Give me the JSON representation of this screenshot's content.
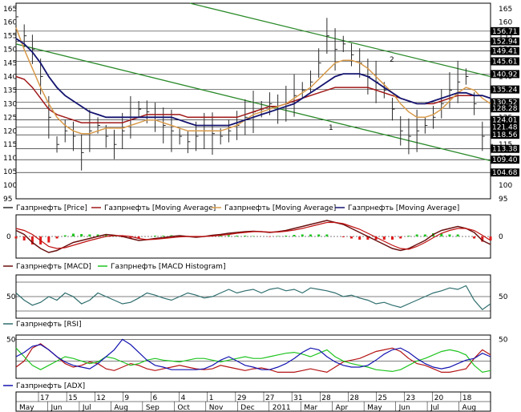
{
  "colors": {
    "price": "#2b2b2b",
    "ma_red": "#a01818",
    "ma_orange": "#d89a4a",
    "ma_navy": "#141470",
    "channel": "#2a8a2a",
    "macd": "#6a1010",
    "signal": "#c01010",
    "hist_pos": "#1fc41f",
    "hist_neg": "#e01b1b",
    "rsi": "#2f6e6e",
    "adx": "#1414b0",
    "di_plus": "#1fc41f",
    "di_minus": "#b41414",
    "grid": "#000000"
  },
  "chart_data": [
    {
      "type": "line",
      "panel": "price",
      "ylim": [
        95,
        167
      ],
      "yticks": [
        95,
        100,
        105,
        110,
        115,
        120,
        125,
        130,
        135,
        140,
        145,
        150,
        155,
        160,
        165
      ],
      "price_boxes": [
        "156.71",
        "152.94",
        "149.41",
        "145.61",
        "140.92",
        "135.24",
        "130.52",
        "128.28",
        "124.01",
        "121.48",
        "118.56",
        "113.38",
        "109.40",
        "104.68"
      ],
      "channel_labels": [
        "2",
        "1"
      ],
      "series": [
        {
          "name": "Газпрнефть [Price]",
          "color_key": "price"
        },
        {
          "name": "Газпрнефть [Moving Average]",
          "color_key": "ma_red"
        },
        {
          "name": "Газпрнефть [Moving Average]",
          "color_key": "ma_orange"
        },
        {
          "name": "Газпрнефть [Moving Average]",
          "color_key": "ma_navy"
        }
      ],
      "approx_close": [
        162,
        155,
        150,
        140,
        125,
        115,
        120,
        118,
        112,
        120,
        122,
        118,
        115,
        120,
        125,
        128,
        127,
        125,
        122,
        120,
        118,
        116,
        118,
        120,
        119,
        118,
        120,
        122,
        125,
        127,
        128,
        130,
        128,
        130,
        133,
        135,
        138,
        145,
        155,
        150,
        152,
        148,
        145,
        140,
        138,
        135,
        128,
        120,
        118,
        120,
        122,
        125,
        130,
        135,
        138,
        140,
        130,
        118,
        115
      ],
      "ma_red": [
        140,
        139,
        136,
        132,
        128,
        126,
        125,
        124,
        123,
        123,
        123,
        123,
        123,
        123,
        124,
        125,
        126,
        126,
        126,
        126,
        126,
        125,
        125,
        125,
        125,
        125,
        125,
        125,
        126,
        127,
        128,
        129,
        129,
        130,
        131,
        132,
        133,
        134,
        135,
        136,
        136,
        136,
        136,
        136,
        135,
        134,
        133,
        132,
        131,
        130,
        130,
        130,
        131,
        132,
        133,
        133,
        133,
        133,
        132
      ],
      "ma_orange": [
        158,
        150,
        143,
        136,
        130,
        125,
        122,
        120,
        119,
        119,
        120,
        121,
        121,
        121,
        122,
        123,
        124,
        124,
        123,
        122,
        121,
        120,
        120,
        120,
        120,
        120,
        121,
        122,
        124,
        126,
        127,
        128,
        129,
        130,
        132,
        134,
        136,
        139,
        142,
        145,
        146,
        146,
        145,
        143,
        140,
        137,
        134,
        130,
        127,
        125,
        125,
        126,
        128,
        131,
        134,
        136,
        135,
        132,
        130
      ],
      "ma_navy": [
        154,
        152,
        149,
        145,
        140,
        136,
        133,
        131,
        129,
        127,
        126,
        125,
        125,
        125,
        125,
        125,
        125,
        125,
        125,
        125,
        124,
        123,
        122,
        122,
        122,
        122,
        122,
        123,
        124,
        125,
        126,
        127,
        128,
        129,
        130,
        132,
        134,
        136,
        138,
        140,
        141,
        141,
        141,
        140,
        138,
        136,
        134,
        132,
        131,
        130,
        130,
        131,
        132,
        133,
        134,
        134,
        133,
        133,
        132
      ]
    },
    {
      "type": "bar",
      "panel": "macd",
      "yticks": [
        0
      ],
      "series": [
        {
          "name": "Газпрнефть [MACD]",
          "color_key": "macd"
        },
        {
          "name": "Газпрнефть [MACD Histogram]",
          "color_key": "hist_pos"
        }
      ],
      "macd": [
        1.5,
        0.5,
        -1.5,
        -3,
        -4,
        -3.5,
        -2.5,
        -1.5,
        -1,
        -0.5,
        0,
        0.5,
        0.3,
        0,
        -0.5,
        -1,
        -0.8,
        -0.5,
        -0.3,
        0,
        0.2,
        0,
        -0.2,
        0,
        0.3,
        0.5,
        0.8,
        1,
        1.2,
        1.3,
        1.2,
        1,
        1.2,
        1.5,
        2,
        2.5,
        3,
        3.5,
        4,
        3.5,
        3,
        2,
        1,
        0,
        -1,
        -2,
        -3,
        -3.5,
        -3,
        -2,
        -1,
        0.5,
        1.5,
        2,
        2.5,
        2,
        1,
        -1,
        -2
      ],
      "signal": [
        2,
        1.5,
        0.5,
        -1,
        -2.5,
        -3,
        -2.8,
        -2.2,
        -1.6,
        -1,
        -0.5,
        0,
        0.2,
        0.2,
        0,
        -0.5,
        -0.8,
        -0.7,
        -0.5,
        -0.3,
        -0.1,
        0,
        0,
        0,
        0.1,
        0.3,
        0.5,
        0.8,
        1,
        1.2,
        1.2,
        1.1,
        1.1,
        1.3,
        1.6,
        2,
        2.5,
        3,
        3.5,
        3.5,
        3.2,
        2.5,
        1.8,
        0.8,
        -0.2,
        -1.2,
        -2.2,
        -3,
        -3.2,
        -2.5,
        -1.5,
        -0.3,
        0.8,
        1.5,
        2,
        2,
        1.5,
        0.3,
        -1
      ],
      "histogram": [
        -0.5,
        -1,
        -2,
        -2,
        -1.5,
        -0.5,
        0.3,
        0.7,
        0.6,
        0.5,
        0.5,
        0.5,
        0.1,
        -0.2,
        -0.5,
        -0.5,
        0,
        0.2,
        0.2,
        0.3,
        0.3,
        0,
        -0.2,
        0,
        0.2,
        0.2,
        0.3,
        0.2,
        0.2,
        0.1,
        0,
        -0.1,
        0.1,
        0.2,
        0.4,
        0.5,
        0.5,
        0.5,
        0.5,
        0,
        -0.2,
        -0.5,
        -0.8,
        -0.8,
        -0.8,
        -0.8,
        -0.8,
        -0.5,
        0.2,
        0.5,
        0.5,
        0.8,
        0.7,
        0.5,
        0.5,
        0,
        -0.5,
        -1.3,
        -1
      ]
    },
    {
      "type": "line",
      "panel": "rsi",
      "yticks": [
        50
      ],
      "series": [
        {
          "name": "Газпрнефть [RSI]",
          "color_key": "rsi"
        }
      ],
      "values": [
        55,
        45,
        38,
        42,
        50,
        45,
        55,
        50,
        40,
        45,
        55,
        50,
        45,
        40,
        42,
        48,
        55,
        52,
        48,
        45,
        50,
        55,
        52,
        48,
        50,
        55,
        60,
        55,
        58,
        60,
        55,
        60,
        62,
        58,
        60,
        55,
        62,
        60,
        58,
        55,
        50,
        52,
        48,
        45,
        40,
        42,
        38,
        35,
        40,
        45,
        50,
        55,
        58,
        62,
        60,
        65,
        45,
        32,
        40
      ]
    },
    {
      "type": "line",
      "panel": "adx",
      "yticks": [
        25,
        50
      ],
      "series": [
        {
          "name": "Газпрнефть [ADX]",
          "color_key": "adx"
        }
      ],
      "adx": [
        30,
        35,
        42,
        44,
        38,
        30,
        24,
        20,
        18,
        16,
        22,
        30,
        38,
        50,
        44,
        35,
        26,
        20,
        18,
        15,
        15,
        15,
        15,
        16,
        20,
        26,
        30,
        25,
        20,
        18,
        15,
        15,
        18,
        22,
        28,
        35,
        40,
        38,
        30,
        24,
        20,
        18,
        18,
        20,
        26,
        33,
        38,
        40,
        35,
        28,
        22,
        18,
        16,
        18,
        22,
        26,
        28,
        34,
        30
      ],
      "di_plus": [
        40,
        30,
        20,
        15,
        20,
        25,
        30,
        28,
        25,
        22,
        24,
        30,
        28,
        24,
        20,
        22,
        26,
        28,
        26,
        25,
        24,
        26,
        28,
        28,
        26,
        24,
        26,
        28,
        30,
        28,
        28,
        30,
        32,
        34,
        35,
        33,
        30,
        34,
        38,
        30,
        25,
        22,
        20,
        18,
        15,
        14,
        13,
        15,
        20,
        25,
        28,
        32,
        36,
        38,
        36,
        32,
        20,
        12,
        14
      ],
      "di_minus": [
        18,
        25,
        40,
        45,
        38,
        30,
        22,
        18,
        20,
        24,
        22,
        16,
        14,
        18,
        22,
        20,
        16,
        14,
        16,
        18,
        20,
        18,
        16,
        15,
        16,
        20,
        18,
        16,
        14,
        16,
        17,
        15,
        12,
        12,
        12,
        14,
        16,
        14,
        12,
        18,
        24,
        26,
        28,
        32,
        36,
        38,
        40,
        36,
        28,
        22,
        20,
        16,
        12,
        12,
        14,
        16,
        28,
        38,
        32
      ]
    }
  ],
  "x_axis": {
    "day_ticks": [
      "17",
      "15",
      "12",
      "9",
      "6",
      "4",
      "1",
      "29",
      "27",
      "31",
      "28",
      "28",
      "25",
      "23",
      "20",
      "18"
    ],
    "month_ticks": [
      "May",
      "Jun",
      "Jul",
      "Aug",
      "Sep",
      "Oct",
      "Nov",
      "Dec",
      "2011",
      "Mar",
      "Apr",
      "May",
      "Jun",
      "Jul",
      "Aug"
    ]
  }
}
